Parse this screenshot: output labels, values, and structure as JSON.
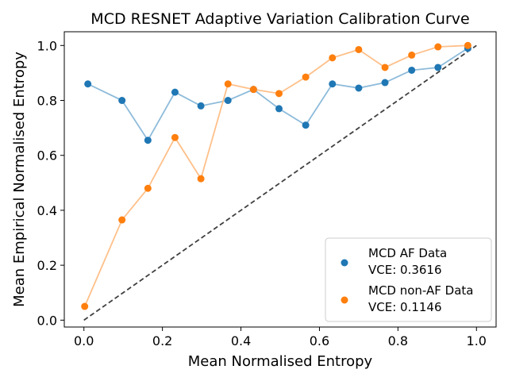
{
  "chart_data": {
    "type": "line",
    "title": "MCD RESNET Adaptive Variation Calibration Curve",
    "xlabel": "Mean Normalised Entropy",
    "ylabel": "Mean Empirical Normalised Entropy",
    "xlim": [
      -0.05,
      1.05
    ],
    "ylim": [
      -0.025,
      1.05
    ],
    "xticks": [
      0.0,
      0.2,
      0.4,
      0.6,
      0.8,
      1.0
    ],
    "yticks": [
      0.0,
      0.2,
      0.4,
      0.6,
      0.8,
      1.0
    ],
    "xtick_labels": [
      "0.0",
      "0.2",
      "0.4",
      "0.6",
      "0.8",
      "1.0"
    ],
    "ytick_labels": [
      "0.0",
      "0.2",
      "0.4",
      "0.6",
      "0.8",
      "1.0"
    ],
    "reference_line": {
      "style": "dashed",
      "color": "#404040",
      "x": [
        0,
        1
      ],
      "y": [
        0,
        1
      ]
    },
    "legend_position": "bottom-right",
    "series": [
      {
        "name": "MCD AF Data",
        "vce_label": "VCE: 0.3616",
        "color": "#1f77b4",
        "line_color": "#8dbbda",
        "x": [
          0.01,
          0.097,
          0.163,
          0.232,
          0.298,
          0.367,
          0.432,
          0.497,
          0.565,
          0.633,
          0.7,
          0.767,
          0.835,
          0.902,
          0.978
        ],
        "y": [
          0.86,
          0.8,
          0.655,
          0.83,
          0.78,
          0.8,
          0.84,
          0.77,
          0.71,
          0.86,
          0.845,
          0.865,
          0.91,
          0.92,
          0.99
        ]
      },
      {
        "name": "MCD non-AF Data",
        "vce_label": "VCE: 0.1146",
        "color": "#ff7f0e",
        "line_color": "#ffc08a",
        "x": [
          0.002,
          0.097,
          0.163,
          0.232,
          0.298,
          0.367,
          0.432,
          0.497,
          0.565,
          0.633,
          0.7,
          0.767,
          0.835,
          0.902,
          0.978
        ],
        "y": [
          0.05,
          0.365,
          0.48,
          0.665,
          0.515,
          0.86,
          0.84,
          0.825,
          0.885,
          0.955,
          0.985,
          0.92,
          0.965,
          0.995,
          1.0
        ]
      }
    ]
  }
}
